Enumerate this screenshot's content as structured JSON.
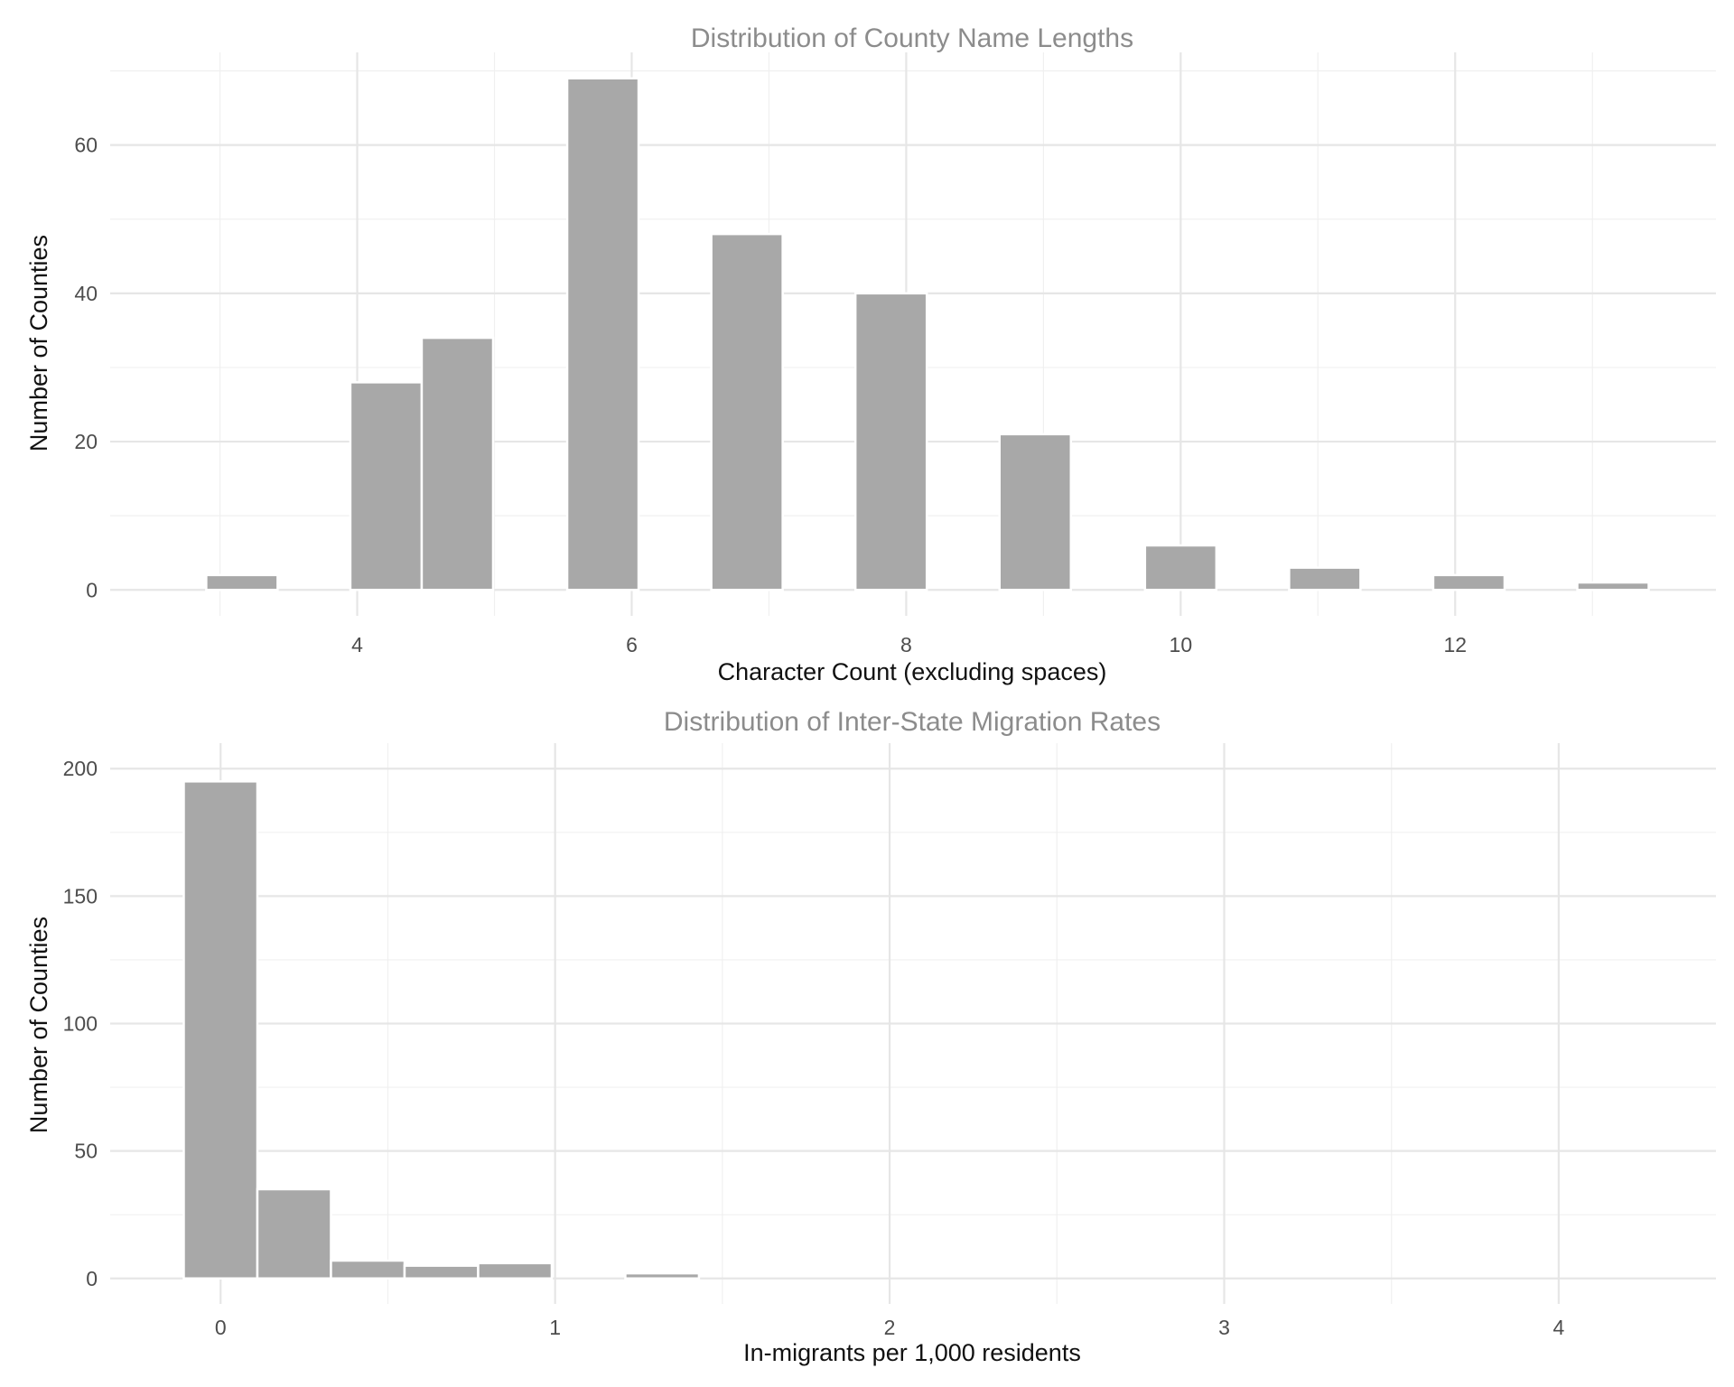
{
  "chart_data": [
    {
      "type": "bar",
      "title": "Distribution of County Name Lengths",
      "xlabel": "Character Count (excluding spaces)",
      "ylabel": "Number of Counties",
      "xlim": [
        2.2,
        13.9
      ],
      "ylim": [
        -3.5,
        72.5
      ],
      "xticks": [
        4,
        6,
        8,
        10,
        12
      ],
      "yticks": [
        0,
        20,
        40,
        60
      ],
      "x_minor_gridlines": [
        3,
        5,
        7,
        9,
        11,
        13
      ],
      "y_minor_gridlines": [
        10,
        30,
        50,
        70
      ],
      "grid": true,
      "bins": [
        {
          "x0": 2.9,
          "x1": 3.42,
          "value": 2
        },
        {
          "x0": 3.95,
          "x1": 4.47,
          "value": 28
        },
        {
          "x0": 4.47,
          "x1": 4.99,
          "value": 34
        },
        {
          "x0": 5.53,
          "x1": 6.05,
          "value": 69
        },
        {
          "x0": 6.58,
          "x1": 7.1,
          "value": 48
        },
        {
          "x0": 7.63,
          "x1": 8.15,
          "value": 40
        },
        {
          "x0": 8.68,
          "x1": 9.2,
          "value": 21
        },
        {
          "x0": 9.74,
          "x1": 10.26,
          "value": 6
        },
        {
          "x0": 10.79,
          "x1": 11.31,
          "value": 3
        },
        {
          "x0": 11.84,
          "x1": 12.36,
          "value": 2
        },
        {
          "x0": 12.89,
          "x1": 13.41,
          "value": 1
        }
      ]
    },
    {
      "type": "bar",
      "title": "Distribution of Inter-State Migration Rates",
      "xlabel": "In-migrants per 1,000 residents",
      "ylabel": "Number of Counties",
      "xlim": [
        -0.33,
        4.47
      ],
      "ylim": [
        -10,
        210
      ],
      "xticks": [
        0,
        1,
        2,
        3,
        4
      ],
      "yticks": [
        0,
        50,
        100,
        150,
        200
      ],
      "x_minor_gridlines": [
        0.5,
        1.5,
        2.5,
        3.5
      ],
      "y_minor_gridlines": [
        25,
        75,
        125,
        175
      ],
      "grid": true,
      "bins": [
        {
          "x0": -0.11,
          "x1": 0.11,
          "value": 195
        },
        {
          "x0": 0.11,
          "x1": 0.33,
          "value": 35
        },
        {
          "x0": 0.33,
          "x1": 0.55,
          "value": 7
        },
        {
          "x0": 0.55,
          "x1": 0.77,
          "value": 5
        },
        {
          "x0": 0.77,
          "x1": 0.99,
          "value": 6
        },
        {
          "x0": 0.99,
          "x1": 1.21,
          "value": 0
        },
        {
          "x0": 1.21,
          "x1": 1.43,
          "value": 2
        },
        {
          "x0": 1.43,
          "x1": 1.65,
          "value": 0
        },
        {
          "x0": 1.65,
          "x1": 1.87,
          "value": 0
        },
        {
          "x0": 1.87,
          "x1": 2.09,
          "value": 0
        },
        {
          "x0": 2.09,
          "x1": 2.31,
          "value": 0
        },
        {
          "x0": 2.31,
          "x1": 2.53,
          "value": 0
        },
        {
          "x0": 2.53,
          "x1": 2.75,
          "value": 0
        },
        {
          "x0": 2.75,
          "x1": 2.97,
          "value": 0
        },
        {
          "x0": 2.97,
          "x1": 3.19,
          "value": 0
        },
        {
          "x0": 3.19,
          "x1": 3.41,
          "value": 0
        },
        {
          "x0": 3.41,
          "x1": 3.63,
          "value": 0
        },
        {
          "x0": 3.63,
          "x1": 3.85,
          "value": 0
        },
        {
          "x0": 3.85,
          "x1": 4.07,
          "value": 0
        },
        {
          "x0": 4.07,
          "x1": 4.29,
          "value": 0
        }
      ]
    }
  ]
}
